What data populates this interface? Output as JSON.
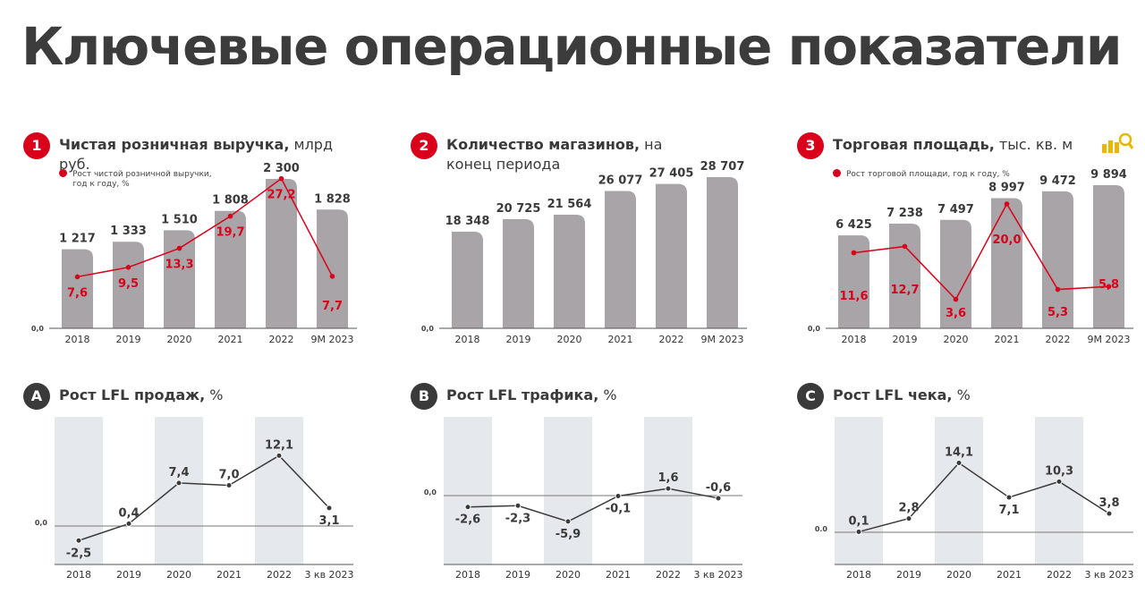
{
  "page_title": "Ключевые операционные показатели",
  "colors": {
    "bar": "#a8a4a7",
    "accent_red": "#d9001b",
    "line_dark": "#3a3a3a",
    "band": "#e5e9ee"
  },
  "panels": {
    "revenue": {
      "badge": "1",
      "title_bold": "Чистая розничная выручка,",
      "title_rest": " млрд руб.",
      "legend_line1": "Рост чистой розничной выручки,",
      "legend_line2": "год к году, %"
    },
    "stores": {
      "badge": "2",
      "title_bold": "Количество магазинов,",
      "title_rest": " на конец периода"
    },
    "area": {
      "badge": "3",
      "title_bold": "Торговая площадь,",
      "title_rest": " тыс. кв. м",
      "legend_line1": "Рост торговой площади, год к году, %",
      "icon": "coins-magnifier-icon"
    },
    "lfl_sales": {
      "badge": "A",
      "title_bold": "Рост LFL продаж,",
      "title_rest": " %"
    },
    "lfl_traffic": {
      "badge": "B",
      "title_bold": "Рост LFL трафика,",
      "title_rest": " %"
    },
    "lfl_check": {
      "badge": "C",
      "title_bold": "Рост LFL чека,",
      "title_rest": " %"
    }
  },
  "chart_data": [
    {
      "id": "revenue",
      "type": "bar",
      "categories": [
        "2018",
        "2019",
        "2020",
        "2021",
        "2022",
        "9M 2023"
      ],
      "values": [
        1217,
        1333,
        1510,
        1808,
        2300,
        1828
      ],
      "value_labels": [
        "1 217",
        "1 333",
        "1 510",
        "1 808",
        "2 300",
        "1 828"
      ],
      "ylim": [
        0,
        2300
      ],
      "zero_label": "0,0",
      "series": [
        {
          "name": "Рост чистой розничной выручки, год к году, %",
          "type": "line",
          "values": [
            7.6,
            9.5,
            13.3,
            19.7,
            27.2,
            7.7
          ],
          "labels": [
            "7,6",
            "9,5",
            "13,3",
            "19,7",
            "27,2",
            "7,7"
          ]
        }
      ]
    },
    {
      "id": "stores",
      "type": "bar",
      "categories": [
        "2018",
        "2019",
        "2020",
        "2021",
        "2022",
        "9M 2023"
      ],
      "values": [
        18348,
        20725,
        21564,
        26077,
        27405,
        28707
      ],
      "value_labels": [
        "18 348",
        "20 725",
        "21 564",
        "26 077",
        "27 405",
        "28 707"
      ],
      "ylim": [
        0,
        28707
      ],
      "zero_label": "0,0"
    },
    {
      "id": "area",
      "type": "bar",
      "categories": [
        "2018",
        "2019",
        "2020",
        "2021",
        "2022",
        "9M 2023"
      ],
      "values": [
        6425,
        7238,
        7497,
        8997,
        9472,
        9894
      ],
      "value_labels": [
        "6 425",
        "7 238",
        "7 497",
        "8 997",
        "9 472",
        "9 894"
      ],
      "ylim": [
        0,
        9894
      ],
      "zero_label": "0,0",
      "series": [
        {
          "name": "Рост торговой площади, год к году, %",
          "type": "line",
          "values": [
            11.6,
            12.7,
            3.6,
            20.0,
            5.3,
            5.8
          ],
          "labels": [
            "11,6",
            "12,7",
            "3,6",
            "20,0",
            "5,3",
            "5,8"
          ]
        }
      ]
    },
    {
      "id": "lfl_sales",
      "type": "line",
      "categories": [
        "2018",
        "2019",
        "2020",
        "2021",
        "2022",
        "3 кв 2023"
      ],
      "values": [
        -2.5,
        0.4,
        7.4,
        7.0,
        12.1,
        3.1
      ],
      "labels": [
        "-2,5",
        "0,4",
        "7,4",
        "7,0",
        "12,1",
        "3,1"
      ],
      "zero_label": "0,0",
      "ylim": [
        -5.9,
        14.1
      ]
    },
    {
      "id": "lfl_traffic",
      "type": "line",
      "categories": [
        "2018",
        "2019",
        "2020",
        "2021",
        "2022",
        "3 кв 2023"
      ],
      "values": [
        -2.6,
        -2.3,
        -5.9,
        -0.1,
        1.6,
        -0.6
      ],
      "labels": [
        "-2,6",
        "-2,3",
        "-5,9",
        "-0,1",
        "1,6",
        "-0,6"
      ],
      "zero_label": "0,0",
      "ylim": [
        -5.9,
        14.1
      ]
    },
    {
      "id": "lfl_check",
      "type": "line",
      "categories": [
        "2018",
        "2019",
        "2020",
        "2021",
        "2022",
        "3 кв 2023"
      ],
      "values": [
        0.1,
        2.8,
        14.1,
        7.1,
        10.3,
        3.8
      ],
      "labels": [
        "0,1",
        "2,8",
        "14,1",
        "7,1",
        "10,3",
        "3,8"
      ],
      "zero_label": "0.0",
      "ylim": [
        -5.9,
        14.1
      ]
    }
  ]
}
